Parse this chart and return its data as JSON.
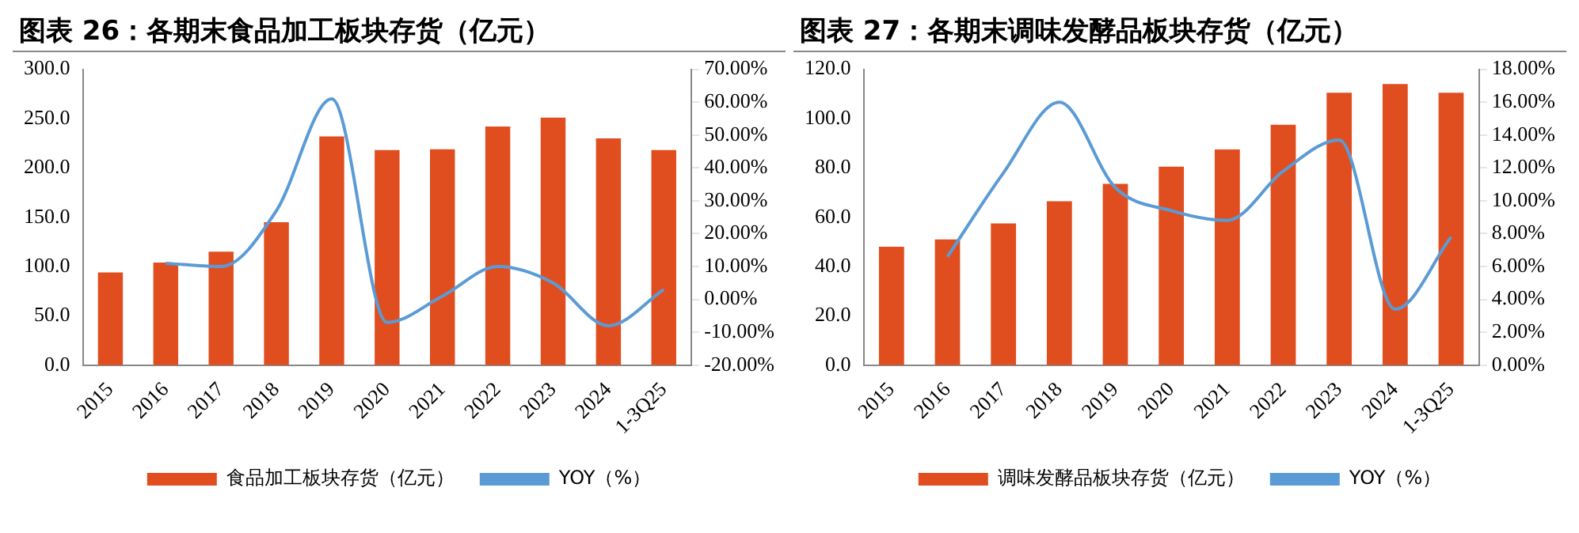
{
  "chart_data": [
    {
      "type": "bar",
      "title": "图表 26：各期末食品加工板块存货（亿元）",
      "categories": [
        "2015",
        "2016",
        "2017",
        "2018",
        "2019",
        "2020",
        "2021",
        "2022",
        "2023",
        "2024",
        "1-3Q25"
      ],
      "series": [
        {
          "name": "食品加工板块存货（亿元）",
          "color": "#e04e1f",
          "values": [
            94,
            104,
            115,
            145,
            232,
            218,
            219,
            242,
            251,
            230,
            218
          ]
        },
        {
          "name": "YOY（%）",
          "type": "line",
          "axis": "y2",
          "color": "#5b9bd5",
          "values": [
            null,
            11,
            10,
            27,
            61,
            -7,
            1,
            10,
            5,
            -8,
            3
          ]
        }
      ],
      "ylim": [
        0,
        300
      ],
      "yticks": [
        {
          "value": 0,
          "label": "0.0"
        },
        {
          "value": 50,
          "label": "50.0"
        },
        {
          "value": 100,
          "label": "100.0"
        },
        {
          "value": 150,
          "label": "150.0"
        },
        {
          "value": 200,
          "label": "200.0"
        },
        {
          "value": 250,
          "label": "250.0"
        },
        {
          "value": 300,
          "label": "300.0"
        }
      ],
      "y2lim": [
        -20,
        70
      ],
      "y2ticks": [
        {
          "value": -20,
          "label": "-20.00%"
        },
        {
          "value": -10,
          "label": "-10.00%"
        },
        {
          "value": 0,
          "label": "0.00%"
        },
        {
          "value": 10,
          "label": "10.00%"
        },
        {
          "value": 20,
          "label": "20.00%"
        },
        {
          "value": 30,
          "label": "30.00%"
        },
        {
          "value": 40,
          "label": "40.00%"
        },
        {
          "value": 50,
          "label": "50.00%"
        },
        {
          "value": 60,
          "label": "60.00%"
        },
        {
          "value": 70,
          "label": "70.00%"
        }
      ],
      "grid": false,
      "legend": "bottom",
      "marker": "none"
    },
    {
      "type": "bar",
      "title": "图表 27：各期末调味发酵品板块存货（亿元）",
      "categories": [
        "2015",
        "2016",
        "2017",
        "2018",
        "2019",
        "2020",
        "2021",
        "2022",
        "2023",
        "2024",
        "1-3Q25"
      ],
      "series": [
        {
          "name": "调味发酵品板块存货（亿元）",
          "color": "#e04e1f",
          "values": [
            48,
            51,
            57.5,
            66.5,
            73.5,
            80.5,
            87.5,
            97.5,
            110.5,
            114,
            110.5
          ]
        },
        {
          "name": "YOY（%）",
          "type": "line",
          "axis": "y2",
          "color": "#5b9bd5",
          "values": [
            null,
            6.6,
            11.7,
            16,
            10.8,
            9.4,
            8.8,
            11.8,
            13.7,
            3.4,
            7.8
          ]
        }
      ],
      "ylim": [
        0,
        120
      ],
      "yticks": [
        {
          "value": 0,
          "label": "0.0"
        },
        {
          "value": 20,
          "label": "20.0"
        },
        {
          "value": 40,
          "label": "40.0"
        },
        {
          "value": 60,
          "label": "60.0"
        },
        {
          "value": 80,
          "label": "80.0"
        },
        {
          "value": 100,
          "label": "100.0"
        },
        {
          "value": 120,
          "label": "120.0"
        }
      ],
      "y2lim": [
        0,
        18
      ],
      "y2ticks": [
        {
          "value": 0,
          "label": "0.00%"
        },
        {
          "value": 2,
          "label": "2.00%"
        },
        {
          "value": 4,
          "label": "4.00%"
        },
        {
          "value": 6,
          "label": "6.00%"
        },
        {
          "value": 8,
          "label": "8.00%"
        },
        {
          "value": 10,
          "label": "10.00%"
        },
        {
          "value": 12,
          "label": "12.00%"
        },
        {
          "value": 14,
          "label": "14.00%"
        },
        {
          "value": 16,
          "label": "16.00%"
        },
        {
          "value": 18,
          "label": "18.00%"
        }
      ],
      "grid": false,
      "legend": "bottom",
      "marker": "none"
    }
  ]
}
